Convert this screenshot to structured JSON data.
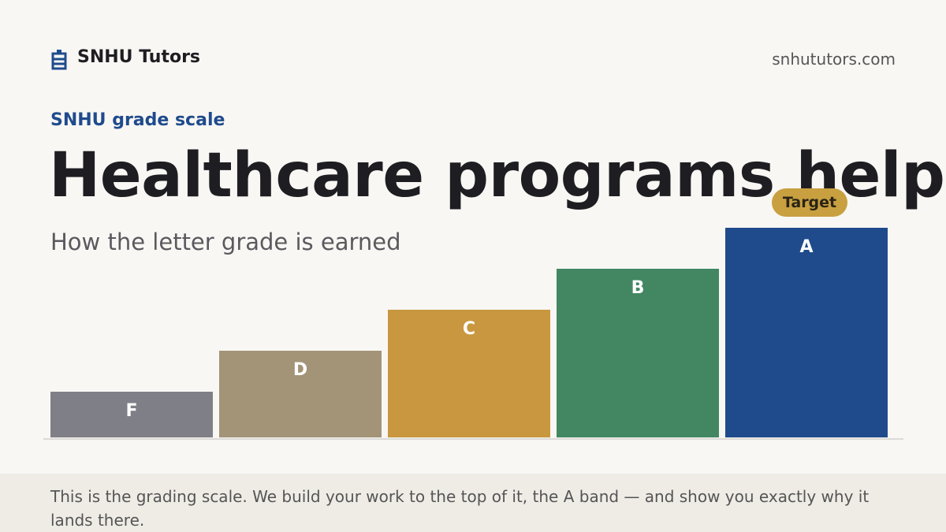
{
  "header": {
    "brand": "SNHU Tutors",
    "site": "snhututors.com"
  },
  "eyebrow": "SNHU grade scale",
  "title": "Healthcare programs help",
  "subtitle": "How the letter grade is earned",
  "steps": [
    {
      "label": "F"
    },
    {
      "label": "D"
    },
    {
      "label": "C"
    },
    {
      "label": "B"
    },
    {
      "label": "A"
    }
  ],
  "badge": "Target",
  "footer": "This is the grading scale. We build your work to the top of it, the A band — and show you exactly why it lands there."
}
